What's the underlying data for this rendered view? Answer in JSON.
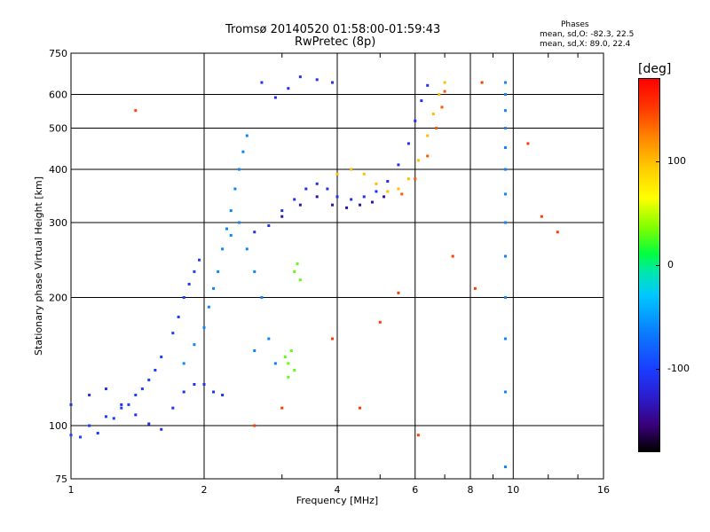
{
  "chart_data": {
    "type": "scatter",
    "title": "Tromsø 20140520 01:58:00-01:59:43",
    "subtitle": "RwPretec (8p)",
    "xlabel": "Frequency [MHz]",
    "ylabel": "Stationary phase Virtual Height [km]",
    "x_scale": "log",
    "y_scale": "log",
    "xlim": [
      1,
      16
    ],
    "ylim": [
      75,
      750
    ],
    "x_ticks": [
      "1",
      "2",
      "4",
      "6",
      "8",
      "10",
      "16"
    ],
    "y_ticks": [
      "75",
      "100",
      "200",
      "300",
      "400",
      "500",
      "600",
      "750"
    ],
    "grid": true,
    "stats": {
      "heading": "Phases",
      "o_mode": "mean, sd,O: -82.3, 22.5",
      "x_mode": "mean, sd,X:  89.0, 22.4"
    },
    "colorbar": {
      "label": "[deg]",
      "range": [
        -180,
        180
      ],
      "ticks": [
        "100",
        "0",
        "-100"
      ]
    },
    "traces": [
      {
        "name": "low-trace-blue",
        "phase": -100,
        "points": [
          [
            1.0,
            95
          ],
          [
            1.05,
            94
          ],
          [
            1.1,
            100
          ],
          [
            1.15,
            96
          ],
          [
            1.2,
            105
          ],
          [
            1.25,
            104
          ],
          [
            1.3,
            110
          ],
          [
            1.35,
            112
          ],
          [
            1.4,
            118
          ],
          [
            1.45,
            122
          ],
          [
            1.5,
            128
          ],
          [
            1.55,
            135
          ],
          [
            1.6,
            145
          ],
          [
            1.7,
            165
          ],
          [
            1.75,
            180
          ],
          [
            1.8,
            200
          ],
          [
            1.85,
            215
          ],
          [
            1.9,
            230
          ],
          [
            1.95,
            245
          ]
        ]
      },
      {
        "name": "low-trace-blue-2",
        "phase": -110,
        "points": [
          [
            1.0,
            112
          ],
          [
            1.1,
            118
          ],
          [
            1.2,
            122
          ],
          [
            1.3,
            112
          ],
          [
            1.4,
            106
          ],
          [
            1.5,
            101
          ],
          [
            1.6,
            98
          ],
          [
            1.7,
            110
          ],
          [
            1.8,
            120
          ],
          [
            1.9,
            125
          ],
          [
            2.0,
            125
          ],
          [
            2.1,
            120
          ],
          [
            2.2,
            118
          ]
        ]
      },
      {
        "name": "low-trace-sky",
        "phase": -60,
        "points": [
          [
            1.8,
            140
          ],
          [
            1.9,
            155
          ],
          [
            2.0,
            170
          ],
          [
            2.05,
            190
          ],
          [
            2.1,
            210
          ],
          [
            2.15,
            230
          ],
          [
            2.2,
            260
          ],
          [
            2.25,
            290
          ],
          [
            2.3,
            320
          ],
          [
            2.35,
            360
          ],
          [
            2.4,
            400
          ],
          [
            2.45,
            440
          ],
          [
            2.5,
            480
          ],
          [
            2.3,
            280
          ],
          [
            2.4,
            300
          ],
          [
            2.5,
            260
          ],
          [
            2.6,
            230
          ],
          [
            2.7,
            200
          ],
          [
            2.6,
            150
          ],
          [
            2.8,
            160
          ],
          [
            2.9,
            140
          ]
        ]
      },
      {
        "name": "f-trace-blue",
        "phase": -110,
        "points": [
          [
            2.6,
            285
          ],
          [
            2.8,
            295
          ],
          [
            3.0,
            320
          ],
          [
            3.2,
            340
          ],
          [
            3.4,
            360
          ],
          [
            3.6,
            370
          ],
          [
            3.8,
            360
          ],
          [
            4.0,
            345
          ],
          [
            4.3,
            340
          ],
          [
            4.6,
            345
          ],
          [
            4.9,
            355
          ],
          [
            5.2,
            375
          ],
          [
            5.5,
            410
          ],
          [
            5.8,
            460
          ],
          [
            6.0,
            520
          ],
          [
            6.2,
            580
          ],
          [
            6.4,
            630
          ]
        ]
      },
      {
        "name": "f-trace-violet",
        "phase": -140,
        "points": [
          [
            3.0,
            310
          ],
          [
            3.3,
            330
          ],
          [
            3.6,
            345
          ],
          [
            3.9,
            330
          ],
          [
            4.2,
            325
          ],
          [
            4.5,
            330
          ],
          [
            4.8,
            335
          ],
          [
            5.1,
            345
          ]
        ]
      },
      {
        "name": "f-trace-yellow",
        "phase": 100,
        "points": [
          [
            4.0,
            390
          ],
          [
            4.3,
            400
          ],
          [
            4.6,
            390
          ],
          [
            4.9,
            370
          ],
          [
            5.2,
            355
          ],
          [
            5.5,
            360
          ],
          [
            5.8,
            380
          ],
          [
            6.1,
            420
          ],
          [
            6.4,
            480
          ],
          [
            6.6,
            540
          ],
          [
            6.8,
            600
          ],
          [
            7.0,
            640
          ]
        ]
      },
      {
        "name": "f-trace-orange",
        "phase": 140,
        "points": [
          [
            5.6,
            350
          ],
          [
            6.0,
            380
          ],
          [
            6.4,
            430
          ],
          [
            6.7,
            500
          ],
          [
            6.9,
            560
          ],
          [
            7.0,
            610
          ]
        ]
      },
      {
        "name": "upper-blue",
        "phase": -110,
        "points": [
          [
            2.7,
            640
          ],
          [
            2.9,
            590
          ],
          [
            3.1,
            620
          ],
          [
            3.3,
            660
          ],
          [
            3.6,
            650
          ],
          [
            3.9,
            640
          ]
        ]
      },
      {
        "name": "vertical-line-10",
        "phase": -60,
        "points": [
          [
            9.6,
            80
          ],
          [
            9.6,
            120
          ],
          [
            9.6,
            160
          ],
          [
            9.6,
            200
          ],
          [
            9.6,
            250
          ],
          [
            9.6,
            300
          ],
          [
            9.6,
            350
          ],
          [
            9.6,
            400
          ],
          [
            9.6,
            450
          ],
          [
            9.6,
            500
          ],
          [
            9.6,
            550
          ],
          [
            9.6,
            600
          ],
          [
            9.6,
            640
          ]
        ]
      },
      {
        "name": "green-cluster",
        "phase": 30,
        "points": [
          [
            3.05,
            145
          ],
          [
            3.1,
            140
          ],
          [
            3.15,
            150
          ],
          [
            3.2,
            135
          ],
          [
            3.1,
            130
          ],
          [
            3.2,
            230
          ],
          [
            3.3,
            220
          ],
          [
            3.25,
            240
          ]
        ]
      },
      {
        "name": "scattered-misc",
        "phase": 150,
        "points": [
          [
            1.4,
            550
          ],
          [
            2.6,
            100
          ],
          [
            3.0,
            110
          ],
          [
            3.9,
            160
          ],
          [
            4.5,
            110
          ],
          [
            5.0,
            175
          ],
          [
            5.5,
            205
          ],
          [
            6.1,
            95
          ],
          [
            7.3,
            250
          ],
          [
            8.2,
            210
          ],
          [
            8.5,
            640
          ],
          [
            10.8,
            460
          ],
          [
            11.6,
            310
          ],
          [
            12.6,
            285
          ]
        ]
      }
    ]
  }
}
